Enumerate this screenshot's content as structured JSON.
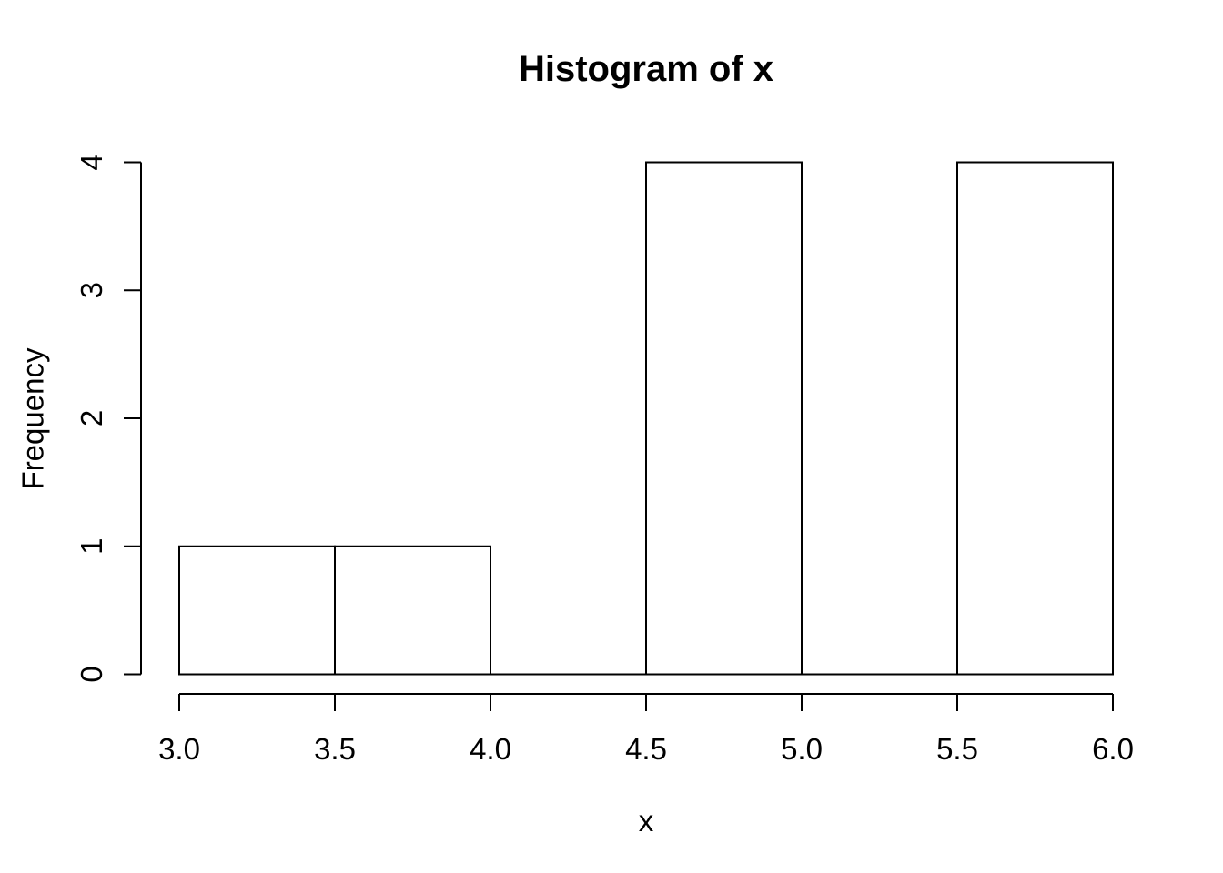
{
  "figure": {
    "title": "Histogram of x",
    "xlabel": "x",
    "ylabel": "Frequency"
  },
  "chart_data": {
    "type": "bar",
    "subtype": "histogram",
    "title": "Histogram of x",
    "xlabel": "x",
    "ylabel": "Frequency",
    "breaks": [
      3.0,
      3.5,
      4.0,
      4.5,
      5.0,
      5.5,
      6.0
    ],
    "counts": [
      1,
      1,
      0,
      4,
      0,
      4
    ],
    "xlim": [
      3.0,
      6.0
    ],
    "ylim": [
      0,
      4
    ],
    "x_ticks": [
      3.0,
      3.5,
      4.0,
      4.5,
      5.0,
      5.5,
      6.0
    ],
    "x_tick_labels": [
      "3.0",
      "3.5",
      "4.0",
      "4.5",
      "5.0",
      "5.5",
      "6.0"
    ],
    "y_ticks": [
      0,
      1,
      2,
      3,
      4
    ],
    "y_tick_labels": [
      "0",
      "1",
      "2",
      "3",
      "4"
    ],
    "bar_fill": "#ffffff",
    "stroke_color": "#000000",
    "background": "#ffffff",
    "grid": false,
    "legend": false
  }
}
